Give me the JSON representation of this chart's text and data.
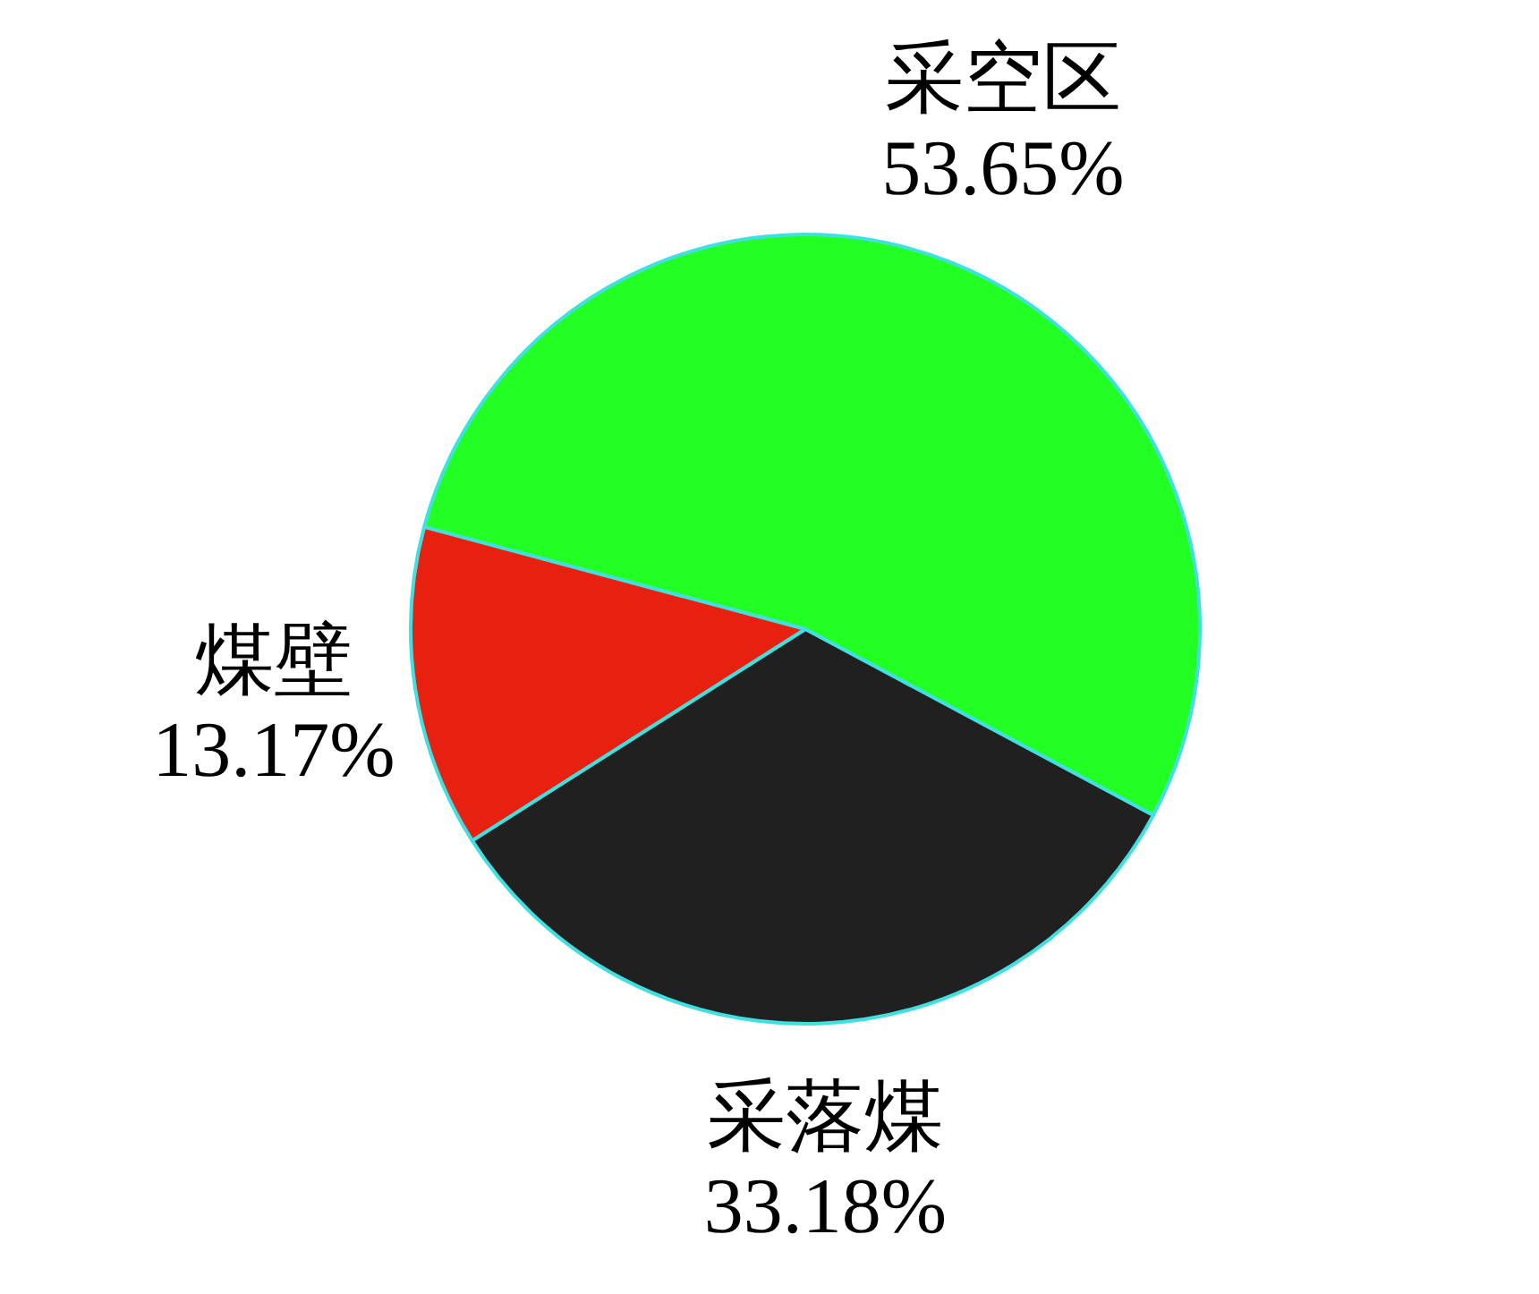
{
  "chart_data": {
    "type": "pie",
    "categories": [
      "采空区",
      "采落煤",
      "煤壁"
    ],
    "values": [
      53.65,
      33.18,
      13.17
    ],
    "colors": [
      "#22ff22",
      "#202020",
      "#e82010"
    ],
    "value_labels": [
      "53.65%",
      "33.18%",
      "13.17%"
    ]
  }
}
